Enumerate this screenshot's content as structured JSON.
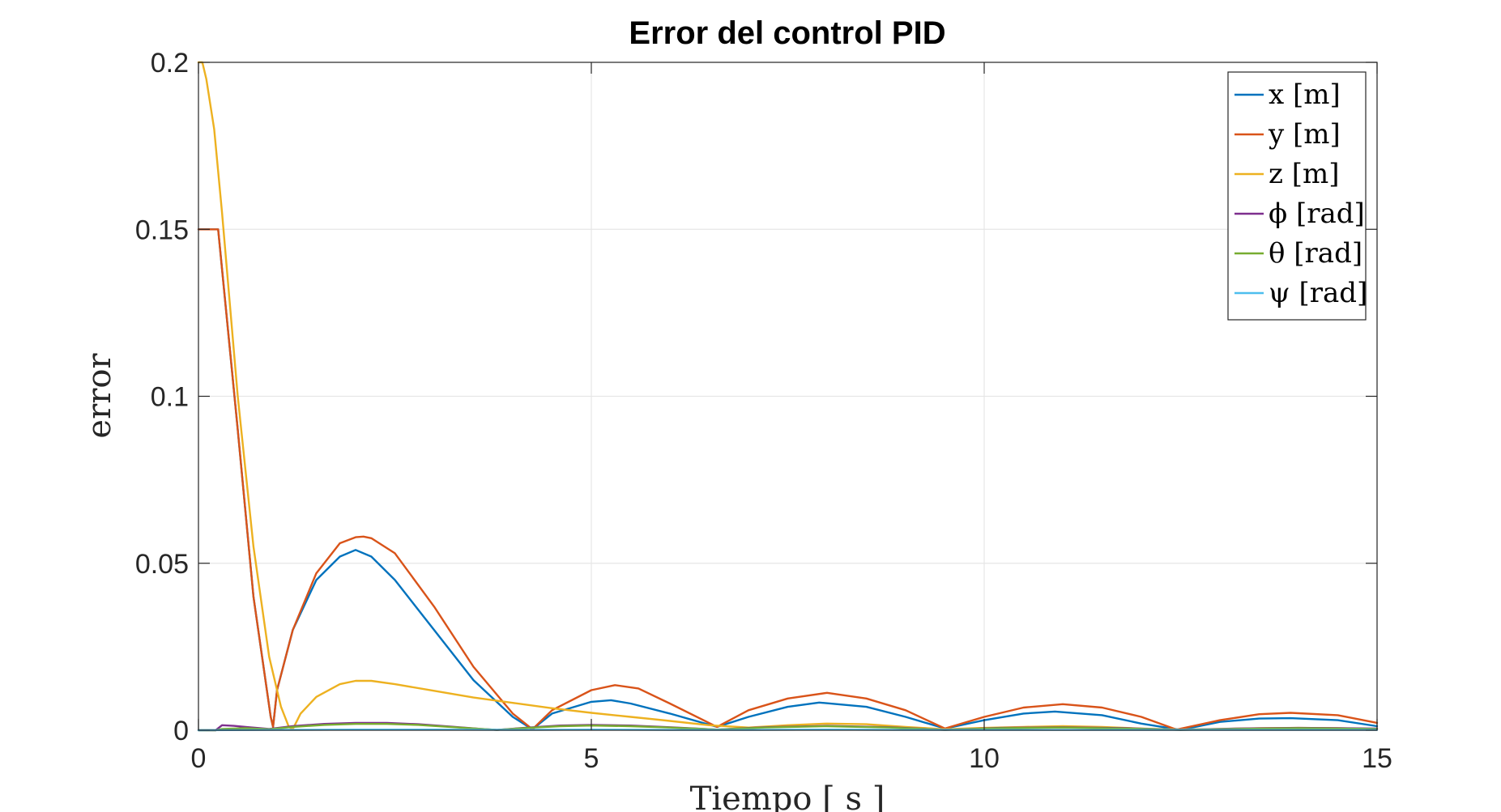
{
  "chart_data": {
    "type": "line",
    "title": "Error del control PID",
    "xlabel": "Tiempo [ s ]",
    "ylabel": "error",
    "xlim": [
      0,
      15
    ],
    "ylim": [
      0,
      0.2
    ],
    "xticks": [
      0,
      5,
      10,
      15
    ],
    "xtick_labels": [
      "0",
      "5",
      "10",
      "15"
    ],
    "yticks": [
      0,
      0.05,
      0.1,
      0.15,
      0.2
    ],
    "ytick_labels": [
      "0",
      "0.05",
      "0.1",
      "0.15",
      "0.2"
    ],
    "grid": true,
    "legend_position": "top-right",
    "series": [
      {
        "name": "x [m]",
        "color": "#0072BD",
        "x": [
          0,
          0.2,
          0.25,
          0.5,
          0.7,
          0.92,
          0.95,
          1.0,
          1.2,
          1.5,
          1.8,
          2.0,
          2.2,
          2.5,
          3.0,
          3.5,
          4.0,
          4.25,
          4.5,
          5.0,
          5.25,
          5.5,
          6.0,
          6.6,
          7.0,
          7.5,
          7.9,
          8.5,
          9.0,
          9.5,
          10.0,
          10.5,
          10.9,
          11.5,
          12.0,
          12.5,
          13.0,
          13.5,
          13.9,
          14.5,
          15.0
        ],
        "y": [
          0.15,
          0.15,
          0.15,
          0.09,
          0.04,
          0.004,
          0.001,
          0.012,
          0.03,
          0.045,
          0.052,
          0.054,
          0.052,
          0.045,
          0.03,
          0.015,
          0.004,
          0.0003,
          0.005,
          0.0085,
          0.009,
          0.008,
          0.005,
          0.001,
          0.004,
          0.007,
          0.0083,
          0.007,
          0.004,
          0.0005,
          0.003,
          0.005,
          0.0056,
          0.0045,
          0.002,
          0.0001,
          0.0025,
          0.0035,
          0.0036,
          0.003,
          0.0012
        ]
      },
      {
        "name": "y [m]",
        "color": "#D95319",
        "x": [
          0,
          0.2,
          0.25,
          0.5,
          0.7,
          0.92,
          0.95,
          1.0,
          1.2,
          1.5,
          1.8,
          2.0,
          2.1,
          2.2,
          2.5,
          3.0,
          3.5,
          4.0,
          4.25,
          4.5,
          5.0,
          5.3,
          5.6,
          6.0,
          6.6,
          7.0,
          7.5,
          8.0,
          8.5,
          9.0,
          9.5,
          10.0,
          10.5,
          11.0,
          11.5,
          12.0,
          12.45,
          13.0,
          13.5,
          13.9,
          14.5,
          15.0
        ],
        "y": [
          0.15,
          0.15,
          0.15,
          0.09,
          0.04,
          0.004,
          0.001,
          0.012,
          0.03,
          0.047,
          0.056,
          0.0578,
          0.058,
          0.0575,
          0.053,
          0.037,
          0.019,
          0.005,
          0.0003,
          0.006,
          0.012,
          0.0135,
          0.0125,
          0.008,
          0.001,
          0.006,
          0.0095,
          0.0112,
          0.0095,
          0.006,
          0.0005,
          0.004,
          0.0068,
          0.0078,
          0.0068,
          0.004,
          0.0002,
          0.003,
          0.0048,
          0.0052,
          0.0045,
          0.0022
        ]
      },
      {
        "name": "z [m]",
        "color": "#EDB120",
        "x": [
          0,
          0.05,
          0.1,
          0.2,
          0.3,
          0.5,
          0.7,
          0.9,
          1.05,
          1.15,
          1.2,
          1.3,
          1.5,
          1.8,
          2.0,
          2.2,
          2.5,
          3.0,
          3.5,
          4.0,
          4.5,
          5.0,
          5.5,
          6.0,
          6.5,
          7.0,
          7.5,
          8.0,
          8.5,
          9.0,
          9.5,
          10.0,
          10.5,
          11.0,
          11.5,
          12.0,
          12.5,
          13.0,
          13.5,
          14.0,
          14.5,
          15.0
        ],
        "y": [
          0.2,
          0.2,
          0.195,
          0.18,
          0.155,
          0.1,
          0.055,
          0.022,
          0.007,
          0.001,
          0.0003,
          0.005,
          0.01,
          0.0138,
          0.0148,
          0.0148,
          0.0138,
          0.0118,
          0.0098,
          0.0082,
          0.0066,
          0.0052,
          0.004,
          0.0028,
          0.0015,
          0.0008,
          0.0015,
          0.002,
          0.0018,
          0.001,
          0.0003,
          0.0007,
          0.001,
          0.0012,
          0.001,
          0.0005,
          0.0002,
          0.0004,
          0.0006,
          0.0007,
          0.0006,
          0.0004
        ]
      },
      {
        "name": "ϕ [rad]",
        "color": "#7E2F8E",
        "x": [
          0,
          0.22,
          0.3,
          0.45,
          0.6,
          0.9,
          1.2,
          1.6,
          2.0,
          2.4,
          2.8,
          3.2,
          3.6,
          3.8,
          4.2,
          4.6,
          5.0,
          5.5,
          6.0,
          6.6,
          7.2,
          8.0,
          8.8,
          9.5,
          10.2,
          11.0,
          11.8,
          12.5,
          13.2,
          14.0,
          15.0
        ],
        "y": [
          0,
          0,
          0.0015,
          0.0013,
          0.001,
          0.0004,
          0.0012,
          0.0019,
          0.0022,
          0.0022,
          0.0018,
          0.0011,
          0.0004,
          0.0001,
          0.0008,
          0.0014,
          0.0016,
          0.0014,
          0.0009,
          0.0002,
          0.0009,
          0.0013,
          0.0009,
          0.0001,
          0.0007,
          0.0009,
          0.0006,
          0.0001,
          0.0005,
          0.0007,
          0.0005
        ]
      },
      {
        "name": "θ [rad]",
        "color": "#77AC30",
        "x": [
          0,
          0.22,
          0.3,
          0.6,
          0.9,
          1.2,
          1.6,
          2.0,
          2.4,
          2.8,
          3.2,
          3.6,
          3.8,
          4.2,
          4.6,
          5.0,
          5.5,
          6.0,
          6.6,
          7.2,
          8.0,
          8.8,
          9.5,
          10.2,
          11.0,
          11.8,
          12.5,
          13.2,
          14.0,
          15.0
        ],
        "y": [
          0,
          0,
          0.0004,
          0.0006,
          0.0003,
          0.001,
          0.0016,
          0.0019,
          0.0019,
          0.0016,
          0.001,
          0.0004,
          0.0001,
          0.0007,
          0.0012,
          0.0014,
          0.0012,
          0.0008,
          0.0002,
          0.0008,
          0.0012,
          0.0008,
          0.0001,
          0.0006,
          0.0008,
          0.0005,
          0.0001,
          0.0004,
          0.0006,
          0.0004
        ]
      },
      {
        "name": "ψ [rad]",
        "color": "#4DBEEE",
        "x": [
          0,
          1.0,
          2.0,
          3.0,
          4.0,
          5.0,
          6.0,
          7.0,
          8.0,
          9.0,
          10.0,
          11.0,
          12.0,
          13.0,
          14.0,
          15.0
        ],
        "y": [
          0,
          0.0001,
          0.0002,
          0.0002,
          0.0001,
          0.0002,
          0.0001,
          0.0001,
          0.0002,
          0.0001,
          0.0001,
          0.0001,
          0.0001,
          0.0001,
          0.0001,
          0.0001
        ]
      }
    ]
  }
}
